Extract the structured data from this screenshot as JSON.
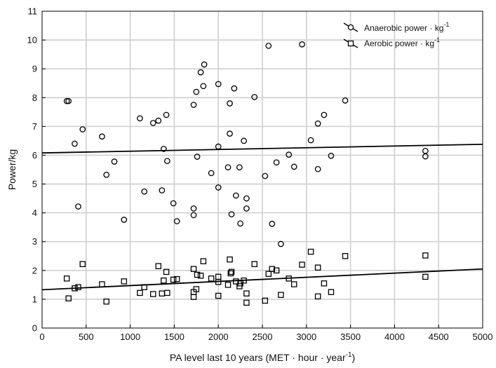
{
  "chart_data": {
    "type": "scatter",
    "title": "",
    "xlabel": "PA level last 10 years (MET · hour · year",
    "xlabel_sup": "-1",
    "xlabel_close": ")",
    "ylabel": "Power/kg",
    "xlim": [
      0,
      5000
    ],
    "ylim": [
      0,
      11
    ],
    "xticks": [
      0,
      500,
      1000,
      1500,
      2000,
      2500,
      3000,
      3500,
      4000,
      4500,
      5000
    ],
    "yticks": [
      0,
      1,
      2,
      3,
      4,
      5,
      6,
      7,
      8,
      9,
      10,
      11
    ],
    "grid": true,
    "legend_position": "top-right",
    "series": [
      {
        "name": "Anaerobic power · kg",
        "name_sup": "-1",
        "marker": "circle",
        "fit_line": [
          [
            0,
            6.08
          ],
          [
            5000,
            6.38
          ]
        ],
        "points": [
          [
            280,
            7.88
          ],
          [
            300,
            7.88
          ],
          [
            370,
            6.4
          ],
          [
            410,
            4.22
          ],
          [
            460,
            6.9
          ],
          [
            680,
            6.65
          ],
          [
            730,
            5.32
          ],
          [
            820,
            5.78
          ],
          [
            930,
            3.76
          ],
          [
            1110,
            7.28
          ],
          [
            1160,
            4.74
          ],
          [
            1260,
            7.12
          ],
          [
            1320,
            7.2
          ],
          [
            1360,
            4.78
          ],
          [
            1380,
            6.22
          ],
          [
            1410,
            7.4
          ],
          [
            1420,
            5.8
          ],
          [
            1490,
            4.33
          ],
          [
            1530,
            3.71
          ],
          [
            1720,
            7.75
          ],
          [
            1720,
            4.15
          ],
          [
            1720,
            3.92
          ],
          [
            1750,
            8.2
          ],
          [
            1760,
            5.95
          ],
          [
            1800,
            8.88
          ],
          [
            1830,
            8.4
          ],
          [
            1840,
            9.15
          ],
          [
            1920,
            5.38
          ],
          [
            2000,
            8.47
          ],
          [
            2000,
            4.88
          ],
          [
            2000,
            6.3
          ],
          [
            2110,
            5.58
          ],
          [
            2130,
            7.8
          ],
          [
            2130,
            6.75
          ],
          [
            2150,
            3.95
          ],
          [
            2180,
            8.32
          ],
          [
            2200,
            4.6
          ],
          [
            2240,
            5.58
          ],
          [
            2250,
            3.63
          ],
          [
            2290,
            6.5
          ],
          [
            2320,
            4.5
          ],
          [
            2320,
            4.15
          ],
          [
            2410,
            8.02
          ],
          [
            2530,
            5.28
          ],
          [
            2570,
            9.8
          ],
          [
            2610,
            3.62
          ],
          [
            2660,
            5.75
          ],
          [
            2710,
            2.92
          ],
          [
            2800,
            6.02
          ],
          [
            2860,
            5.6
          ],
          [
            2950,
            9.85
          ],
          [
            3050,
            6.52
          ],
          [
            3130,
            7.1
          ],
          [
            3130,
            5.52
          ],
          [
            3200,
            7.4
          ],
          [
            3280,
            5.98
          ],
          [
            3440,
            7.9
          ],
          [
            4350,
            6.15
          ],
          [
            4350,
            5.96
          ]
        ]
      },
      {
        "name": "Aerobic power · kg",
        "name_sup": "-1",
        "marker": "square",
        "fit_line": [
          [
            0,
            1.33
          ],
          [
            5000,
            2.05
          ]
        ],
        "points": [
          [
            280,
            1.72
          ],
          [
            300,
            1.03
          ],
          [
            370,
            1.38
          ],
          [
            410,
            1.42
          ],
          [
            460,
            2.22
          ],
          [
            680,
            1.52
          ],
          [
            730,
            0.92
          ],
          [
            930,
            1.62
          ],
          [
            1110,
            1.22
          ],
          [
            1160,
            1.42
          ],
          [
            1260,
            1.18
          ],
          [
            1320,
            2.15
          ],
          [
            1360,
            1.2
          ],
          [
            1380,
            1.65
          ],
          [
            1410,
            1.95
          ],
          [
            1420,
            1.22
          ],
          [
            1490,
            1.68
          ],
          [
            1530,
            1.7
          ],
          [
            1720,
            2.05
          ],
          [
            1720,
            1.25
          ],
          [
            1720,
            1.08
          ],
          [
            1750,
            1.35
          ],
          [
            1760,
            1.85
          ],
          [
            1800,
            1.82
          ],
          [
            1830,
            2.32
          ],
          [
            1920,
            1.72
          ],
          [
            2000,
            1.78
          ],
          [
            2000,
            1.12
          ],
          [
            2000,
            1.6
          ],
          [
            2110,
            1.5
          ],
          [
            2130,
            2.38
          ],
          [
            2140,
            1.9
          ],
          [
            2150,
            1.95
          ],
          [
            2200,
            1.62
          ],
          [
            2240,
            1.45
          ],
          [
            2250,
            1.55
          ],
          [
            2290,
            1.65
          ],
          [
            2320,
            1.2
          ],
          [
            2320,
            0.88
          ],
          [
            2410,
            2.22
          ],
          [
            2530,
            0.95
          ],
          [
            2570,
            1.88
          ],
          [
            2610,
            2.05
          ],
          [
            2660,
            2.0
          ],
          [
            2710,
            1.15
          ],
          [
            2800,
            1.72
          ],
          [
            2860,
            1.52
          ],
          [
            2950,
            2.2
          ],
          [
            3050,
            2.65
          ],
          [
            3130,
            2.1
          ],
          [
            3130,
            1.1
          ],
          [
            3200,
            1.55
          ],
          [
            3280,
            1.25
          ],
          [
            3440,
            2.5
          ],
          [
            4350,
            2.52
          ],
          [
            4350,
            1.78
          ]
        ]
      }
    ]
  }
}
